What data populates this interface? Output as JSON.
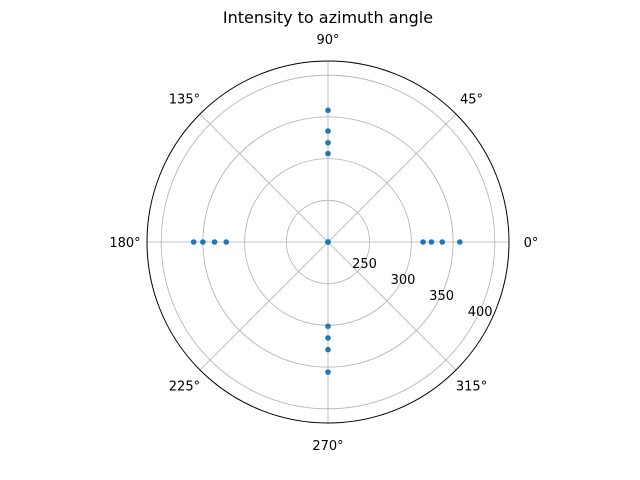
{
  "chart_data": {
    "type": "scatter",
    "projection": "polar",
    "title": "Intensity to azimuth angle",
    "theta_ticks": [
      "0°",
      "45°",
      "90°",
      "135°",
      "180°",
      "225°",
      "270°",
      "315°"
    ],
    "theta_tick_values_deg": [
      0,
      45,
      90,
      135,
      180,
      225,
      270,
      315
    ],
    "r_ticks": [
      "250",
      "300",
      "350",
      "400"
    ],
    "r_tick_values": [
      250,
      300,
      350,
      400
    ],
    "rlim": [
      200,
      417
    ],
    "grid": true,
    "marker_color": "#1f77b4",
    "series": [
      {
        "theta_deg": [
          0,
          0,
          0,
          0,
          0,
          90,
          90,
          90,
          90,
          90,
          180,
          180,
          180,
          180,
          180,
          270,
          270,
          270,
          270,
          270
        ],
        "r": [
          200,
          314,
          324,
          337,
          358,
          200,
          306,
          319,
          333,
          358,
          200,
          322,
          336,
          350,
          361,
          200,
          301,
          315,
          329,
          356
        ]
      }
    ]
  }
}
